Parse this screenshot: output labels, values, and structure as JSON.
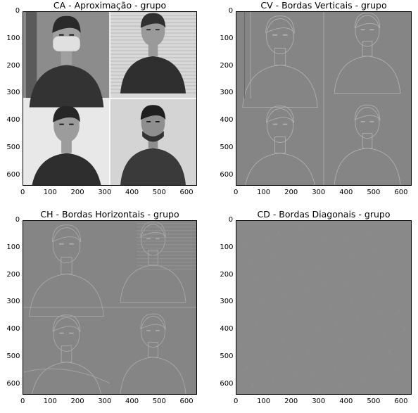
{
  "chart_data": [
    {
      "type": "heatmap",
      "colormap": "gray",
      "title": "CA - Aproximação - grupo",
      "content": "approximation",
      "xlim": [
        0,
        640
      ],
      "ylim": [
        640,
        0
      ],
      "xticks": [
        "0",
        "100",
        "200",
        "300",
        "400",
        "500",
        "600"
      ],
      "yticks": [
        "0",
        "100",
        "200",
        "300",
        "400",
        "500",
        "600"
      ]
    },
    {
      "type": "heatmap",
      "colormap": "gray",
      "title": "CV - Bordas Verticais - grupo",
      "content": "vertical-edges",
      "xlim": [
        0,
        640
      ],
      "ylim": [
        640,
        0
      ],
      "xticks": [
        "0",
        "100",
        "200",
        "300",
        "400",
        "500",
        "600"
      ],
      "yticks": [
        "0",
        "100",
        "200",
        "300",
        "400",
        "500",
        "600"
      ]
    },
    {
      "type": "heatmap",
      "colormap": "gray",
      "title": "CH - Bordas Horizontais - grupo",
      "content": "horizontal-edges",
      "xlim": [
        0,
        640
      ],
      "ylim": [
        640,
        0
      ],
      "xticks": [
        "0",
        "100",
        "200",
        "300",
        "400",
        "500",
        "600"
      ],
      "yticks": [
        "0",
        "100",
        "200",
        "300",
        "400",
        "500",
        "600"
      ]
    },
    {
      "type": "heatmap",
      "colormap": "gray",
      "title": "CD - Bordas Diagonais - grupo",
      "content": "diagonal-edges",
      "xlim": [
        0,
        640
      ],
      "ylim": [
        640,
        0
      ],
      "xticks": [
        "0",
        "100",
        "200",
        "300",
        "400",
        "500",
        "600"
      ],
      "yticks": [
        "0",
        "100",
        "200",
        "300",
        "400",
        "500",
        "600"
      ]
    }
  ],
  "colors": {
    "edge_background": "#858585",
    "diag_background": "#898989",
    "approx_light": "#e8e8e8",
    "approx_dark": "#2e2e2e"
  }
}
